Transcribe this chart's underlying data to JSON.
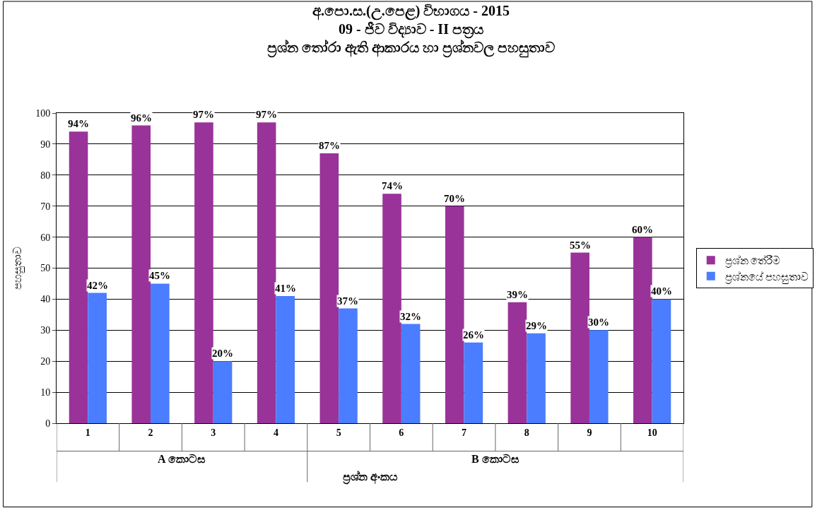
{
  "chart_data": {
    "type": "bar",
    "title": "අ.පො.ස.(උ.පෙළ) විභාගය - 2015\n09 - ජීව විද්‍යාව - II පත්‍රය\nප්‍රශ්න තෝරා ඇති ආකාරය හා ප්‍රශ්නවල පහසුතාව",
    "xlabel": "ප්‍රශ්න අංකය",
    "ylabel": "පහසුතාව",
    "categories": [
      "1",
      "2",
      "3",
      "4",
      "5",
      "6",
      "7",
      "8",
      "9",
      "10"
    ],
    "series": [
      {
        "name": "ප්‍රශ්න තේරීම",
        "color": "#993399",
        "values": [
          94,
          96,
          97,
          97,
          87,
          74,
          70,
          39,
          55,
          60
        ],
        "value_labels": [
          "94%",
          "96%",
          "97%",
          "97%",
          "87%",
          "74%",
          "70%",
          "39%",
          "55%",
          "60%"
        ]
      },
      {
        "name": "ප්‍රශ්නයේ පහසුතාව",
        "color": "#4a7dff",
        "values": [
          42,
          45,
          20,
          41,
          37,
          32,
          26,
          29,
          30,
          40
        ],
        "value_labels": [
          "42%",
          "45%",
          "20%",
          "41%",
          "37%",
          "32%",
          "26%",
          "29%",
          "30%",
          "40%"
        ]
      }
    ],
    "annotations": [
      "A කොටස",
      "B කොටස"
    ],
    "ylim": [
      0,
      100
    ],
    "yticks": [
      0,
      10,
      20,
      30,
      40,
      50,
      60,
      70,
      80,
      90,
      100
    ],
    "grid": "y",
    "legend": "right"
  }
}
